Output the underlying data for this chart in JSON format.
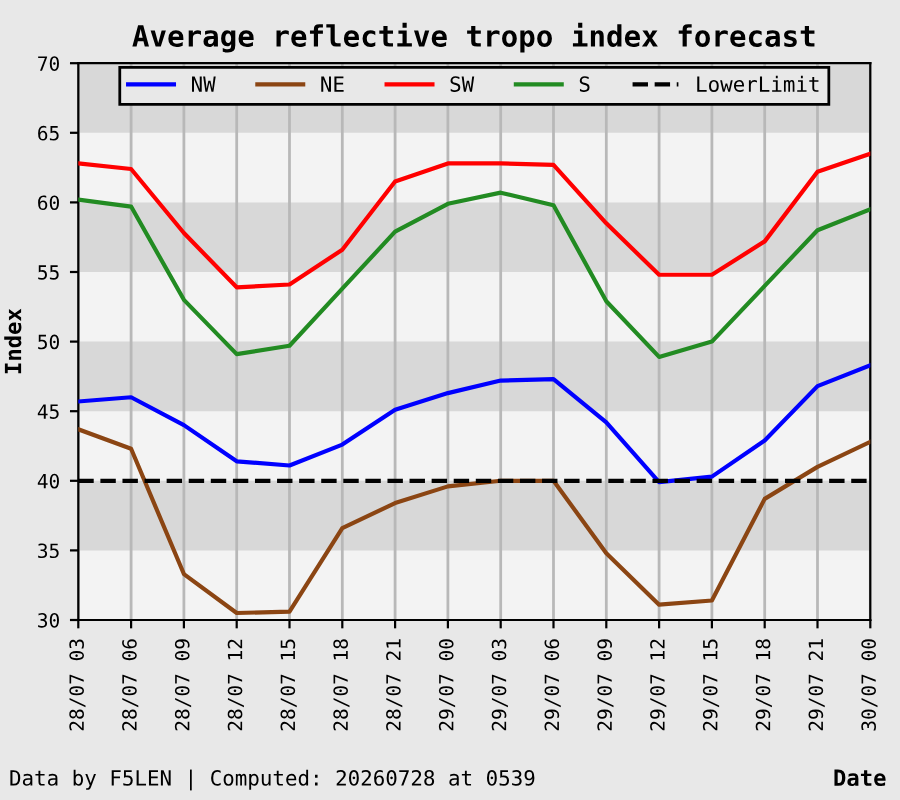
{
  "chart_data": {
    "type": "line",
    "title": "Average reflective tropo index forecast",
    "xlabel": "Date",
    "ylabel": "Index",
    "categories": [
      "28/07 03",
      "28/07 06",
      "28/07 09",
      "28/07 12",
      "28/07 15",
      "28/07 18",
      "28/07 21",
      "29/07 00",
      "29/07 03",
      "29/07 06",
      "29/07 09",
      "29/07 12",
      "29/07 15",
      "29/07 18",
      "29/07 21",
      "30/07 00"
    ],
    "series": [
      {
        "name": "NW",
        "color": "#0000ff",
        "values": [
          45.7,
          46.0,
          44.0,
          41.4,
          41.1,
          42.6,
          45.1,
          46.3,
          47.2,
          47.3,
          44.2,
          39.9,
          40.3,
          42.9,
          46.8,
          48.3
        ]
      },
      {
        "name": "NE",
        "color": "#8b4513",
        "values": [
          43.7,
          42.3,
          33.3,
          30.5,
          30.6,
          36.6,
          38.4,
          39.6,
          40.0,
          40.0,
          34.8,
          31.1,
          31.4,
          38.7,
          41.0,
          42.8
        ]
      },
      {
        "name": "SW",
        "color": "#ff0000",
        "values": [
          62.8,
          62.4,
          57.8,
          53.9,
          54.1,
          56.6,
          61.5,
          62.8,
          62.8,
          62.7,
          58.5,
          54.8,
          54.8,
          57.2,
          62.2,
          63.5
        ]
      },
      {
        "name": "S",
        "color": "#228b22",
        "values": [
          60.2,
          59.7,
          53.0,
          49.1,
          49.7,
          53.8,
          57.9,
          59.9,
          60.7,
          59.8,
          52.9,
          48.9,
          50.0,
          54.0,
          58.0,
          59.5
        ]
      }
    ],
    "ref_lines": [
      {
        "axis": "y",
        "value": 40,
        "label": "LowerLimit",
        "color": "#000000",
        "line_style": "dashed"
      }
    ],
    "ylim": [
      30,
      70
    ],
    "yticks": [
      30,
      35,
      40,
      45,
      50,
      55,
      60,
      65,
      70
    ],
    "bands": [
      {
        "axis": "y",
        "from": 65,
        "to": 70,
        "color": "#d8d8d8"
      },
      {
        "axis": "y",
        "from": 55,
        "to": 60,
        "color": "#d8d8d8"
      },
      {
        "axis": "y",
        "from": 45,
        "to": 50,
        "color": "#d8d8d8"
      },
      {
        "axis": "y",
        "from": 35,
        "to": 40,
        "color": "#d8d8d8"
      }
    ],
    "grid": "x",
    "legend": "top",
    "marker": "none",
    "line_style": "solid",
    "annotations": [
      "Data by F5LEN | Computed: 20260728 at 0539"
    ]
  }
}
